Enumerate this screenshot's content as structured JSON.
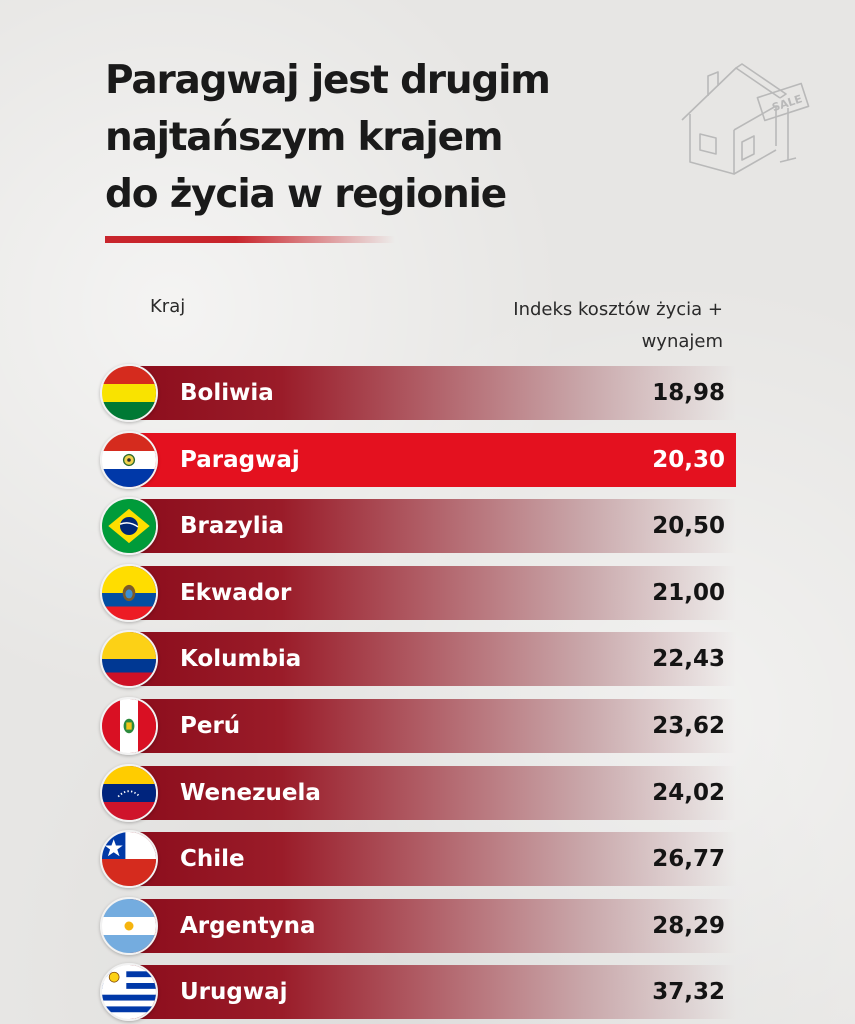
{
  "header": {
    "title_lines": [
      "Paragwaj jest drugim",
      "najtańszym krajem",
      "do życia w regionie"
    ],
    "sign_text": "SALE"
  },
  "columns": {
    "country": "Kraj",
    "value_line1": "Indeks kosztów życia +",
    "value_line2": "wynajem"
  },
  "colors": {
    "accent": "#e4111f",
    "bar_dark": "#8c0d1c"
  },
  "highlight": "Paragwaj",
  "chart_data": {
    "type": "bar",
    "orientation": "horizontal",
    "categories": [
      "Boliwia",
      "Paragwaj",
      "Brazylia",
      "Ekwador",
      "Kolumbia",
      "Perú",
      "Wenezuela",
      "Chile",
      "Argentyna",
      "Urugwaj"
    ],
    "labels": [
      "18,98",
      "20,30",
      "20,50",
      "21,00",
      "22,43",
      "23,62",
      "24,02",
      "26,77",
      "28,29",
      "37,32"
    ],
    "values": [
      18.98,
      20.3,
      20.5,
      21.0,
      22.43,
      23.62,
      24.02,
      26.77,
      28.29,
      37.32
    ],
    "flags": [
      "bolivia-flag-icon",
      "paraguay-flag-icon",
      "brazil-flag-icon",
      "ecuador-flag-icon",
      "colombia-flag-icon",
      "peru-flag-icon",
      "venezuela-flag-icon",
      "chile-flag-icon",
      "argentina-flag-icon",
      "uruguay-flag-icon"
    ],
    "title": "",
    "xlabel": "Kraj",
    "ylabel": "Indeks kosztów życia + wynajem"
  }
}
